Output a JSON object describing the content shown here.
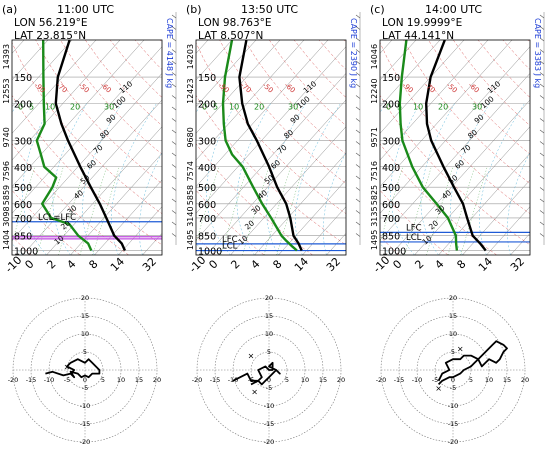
{
  "chart_data": [
    {
      "type": "skew-t",
      "panel": "(a)",
      "title": "11:00 UTC",
      "lon": "LON 56.219°E",
      "lat": "LAT  23.815°N",
      "cape": "CAPE = 4148 J kg",
      "lcl_label": "LCL=LFC",
      "lfc_label": "",
      "pressure_ticks": [
        150,
        200,
        300,
        400,
        500,
        600,
        700,
        850,
        1000
      ],
      "height_ticks": [
        "14393",
        "12553",
        "9740",
        "7596",
        "5859",
        "3098",
        "1404"
      ],
      "height_tick_p": [
        120,
        175,
        290,
        420,
        545,
        690,
        890
      ],
      "temperature_ticks": [
        -10,
        0,
        2,
        4,
        8,
        14,
        32
      ],
      "mixing_ratio_labels": [
        "0",
        "5",
        "10",
        "20",
        "30"
      ],
      "isotherm_labels": [
        "110",
        "100",
        "90",
        "80",
        "70",
        "60",
        "50",
        "40",
        "30",
        "20",
        "10",
        "0",
        "-10"
      ],
      "dry_adiabat_labels": [
        "-90",
        "-70",
        "-50",
        "-60"
      ],
      "lcl_pressure": 730,
      "lfc_pressure": 730,
      "purple_pressures": [
        860,
        880
      ],
      "temperature_profile": [
        [
          1000,
          31
        ],
        [
          925,
          27
        ],
        [
          850,
          21
        ],
        [
          700,
          11
        ],
        [
          600,
          3
        ],
        [
          500,
          -7
        ],
        [
          400,
          -19
        ],
        [
          300,
          -34
        ],
        [
          250,
          -43
        ],
        [
          200,
          -53
        ],
        [
          150,
          -62
        ],
        [
          100,
          -71
        ]
      ],
      "dewpoint_profile": [
        [
          1000,
          17
        ],
        [
          925,
          13
        ],
        [
          850,
          6
        ],
        [
          750,
          -2
        ],
        [
          700,
          -12
        ],
        [
          600,
          -21
        ],
        [
          500,
          -23
        ],
        [
          450,
          -25
        ],
        [
          400,
          -34
        ],
        [
          350,
          -40
        ],
        [
          300,
          -47
        ],
        [
          250,
          -50
        ],
        [
          200,
          -58
        ],
        [
          150,
          -68
        ],
        [
          100,
          -82
        ]
      ],
      "hodograph": {
        "range": 20,
        "ring_labels": [
          "5",
          "10",
          "15",
          "20"
        ],
        "axis_labels": [
          "-20",
          "-15",
          "-10",
          "-5",
          "0",
          "5",
          "10",
          "15",
          "20"
        ],
        "marks": [
          [
            -5,
            1
          ]
        ],
        "u": [
          -11,
          -9,
          -6,
          -4,
          -3,
          -5,
          -4,
          -2,
          0,
          1,
          2,
          3,
          4,
          4,
          2,
          1,
          0,
          -1,
          -2,
          -4,
          -3,
          -4
        ],
        "v": [
          -1,
          -0.5,
          -1.5,
          -1,
          0,
          1,
          2,
          3,
          2,
          3,
          2,
          1,
          0,
          -1,
          -1,
          -2,
          -1.5,
          -2,
          -1,
          -0.5,
          -2,
          -1
        ]
      }
    },
    {
      "type": "skew-t",
      "panel": "(b)",
      "title": "13:50 UTC",
      "lon": "LON 98.763°E",
      "lat": "LAT   8.507°N",
      "cape": "CAPE = 2390 J kg",
      "lcl_label": "LCL",
      "lfc_label": "LFC",
      "pressure_ticks": [
        150,
        200,
        300,
        400,
        500,
        600,
        700,
        850,
        1000
      ],
      "height_ticks": [
        "14203",
        "12423",
        "9680",
        "7574",
        "5858",
        "3140",
        "1495"
      ],
      "height_tick_p": [
        120,
        175,
        290,
        420,
        545,
        690,
        890
      ],
      "temperature_ticks": [
        -10,
        0,
        2,
        4,
        8,
        14,
        32
      ],
      "mixing_ratio_labels": [
        "0",
        "5",
        "10",
        "20",
        "30"
      ],
      "isotherm_labels": [
        "110",
        "100",
        "90",
        "80",
        "70",
        "60",
        "50",
        "40",
        "30",
        "20",
        "10",
        "0",
        "-10"
      ],
      "dry_adiabat_labels": [
        "-90",
        "-70",
        "-50",
        "-60"
      ],
      "lcl_pressure": 1000,
      "lfc_pressure": 930,
      "purple_pressures": [],
      "temperature_profile": [
        [
          1000,
          28
        ],
        [
          925,
          24
        ],
        [
          850,
          19
        ],
        [
          700,
          11
        ],
        [
          600,
          4
        ],
        [
          500,
          -6
        ],
        [
          400,
          -17
        ],
        [
          300,
          -32
        ],
        [
          250,
          -42
        ],
        [
          200,
          -52
        ],
        [
          150,
          -63
        ],
        [
          100,
          -74
        ]
      ],
      "dewpoint_profile": [
        [
          1000,
          26
        ],
        [
          950,
          22
        ],
        [
          900,
          18
        ],
        [
          850,
          14
        ],
        [
          700,
          3
        ],
        [
          600,
          -6
        ],
        [
          500,
          -16
        ],
        [
          400,
          -28
        ],
        [
          350,
          -37
        ],
        [
          300,
          -45
        ],
        [
          250,
          -52
        ],
        [
          200,
          -60
        ],
        [
          150,
          -69
        ],
        [
          100,
          -80
        ]
      ],
      "hodograph": {
        "range": 20,
        "ring_labels": [
          "5",
          "10",
          "15",
          "20"
        ],
        "axis_labels": [
          "-20",
          "-15",
          "-10",
          "-5",
          "0",
          "5",
          "10",
          "15",
          "20"
        ],
        "marks": [
          [
            -5,
            4
          ],
          [
            -4,
            -6
          ]
        ],
        "u": [
          -10,
          -8,
          -6,
          -5,
          -3,
          -2,
          -3,
          -1,
          0,
          1,
          1,
          1,
          0,
          2,
          3,
          2,
          1,
          0,
          -1,
          -2,
          -3,
          -5
        ],
        "v": [
          -3,
          -2,
          -1,
          -3,
          -3,
          -2,
          0,
          1,
          0,
          0,
          1,
          2,
          1,
          0,
          -1,
          0,
          -1,
          -2,
          -3,
          -4,
          -3,
          -4
        ]
      }
    },
    {
      "type": "skew-t",
      "panel": "(c)",
      "title": "14:00 UTC",
      "lon": "LON 19.9999°E",
      "lat": "LAT  44.141°N",
      "cape": "CAPE = 3383 J kg",
      "lcl_label": "LCL",
      "lfc_label": "LFC",
      "pressure_ticks": [
        150,
        200,
        300,
        400,
        500,
        600,
        700,
        850,
        1000
      ],
      "height_ticks": [
        "14046",
        "12240",
        "9571",
        "7516",
        "5825",
        "3135",
        "1495"
      ],
      "height_tick_p": [
        120,
        175,
        290,
        420,
        545,
        690,
        890
      ],
      "temperature_ticks": [
        -10,
        0,
        2,
        4,
        8,
        14,
        32
      ],
      "mixing_ratio_labels": [
        "0",
        "5",
        "10",
        "20",
        "30"
      ],
      "isotherm_labels": [
        "110",
        "100",
        "90",
        "80",
        "70",
        "60",
        "50",
        "40",
        "30",
        "20",
        "10",
        "0",
        "-10"
      ],
      "dry_adiabat_labels": [
        "-90",
        "-70",
        "-50",
        "-60"
      ],
      "lcl_pressure": 910,
      "lfc_pressure": 820,
      "purple_pressures": [],
      "temperature_profile": [
        [
          1000,
          28
        ],
        [
          925,
          23
        ],
        [
          850,
          17
        ],
        [
          700,
          8
        ],
        [
          600,
          1
        ],
        [
          500,
          -9
        ],
        [
          400,
          -21
        ],
        [
          300,
          -36
        ],
        [
          250,
          -44
        ],
        [
          200,
          -52
        ],
        [
          150,
          -60
        ],
        [
          100,
          -68
        ]
      ],
      "dewpoint_profile": [
        [
          1000,
          16
        ],
        [
          925,
          13
        ],
        [
          850,
          10
        ],
        [
          700,
          0
        ],
        [
          600,
          -10
        ],
        [
          500,
          -22
        ],
        [
          400,
          -34
        ],
        [
          300,
          -48
        ],
        [
          250,
          -55
        ],
        [
          200,
          -63
        ],
        [
          150,
          -72
        ],
        [
          100,
          -84
        ]
      ],
      "hodograph": {
        "range": 20,
        "ring_labels": [
          "5",
          "10",
          "15",
          "20"
        ],
        "axis_labels": [
          "-20",
          "-15",
          "-10",
          "-5",
          "0",
          "5",
          "10",
          "15",
          "20"
        ],
        "marks": [
          [
            2,
            6
          ],
          [
            -4,
            -5
          ]
        ],
        "u": [
          -4,
          -3,
          -1,
          -2,
          0,
          2,
          3,
          5,
          7,
          8,
          10,
          12,
          13,
          14,
          15,
          14,
          12,
          11,
          10,
          9,
          8,
          7,
          6,
          5,
          3,
          2,
          0,
          -1,
          -3,
          -4
        ],
        "v": [
          -3,
          -1,
          0,
          2,
          3,
          3,
          4,
          4,
          3,
          1,
          3,
          2,
          3,
          5,
          6,
          7,
          8,
          7,
          6,
          5,
          4,
          3,
          2,
          1,
          0,
          -1,
          -2,
          -2,
          -3,
          -4
        ]
      }
    }
  ]
}
